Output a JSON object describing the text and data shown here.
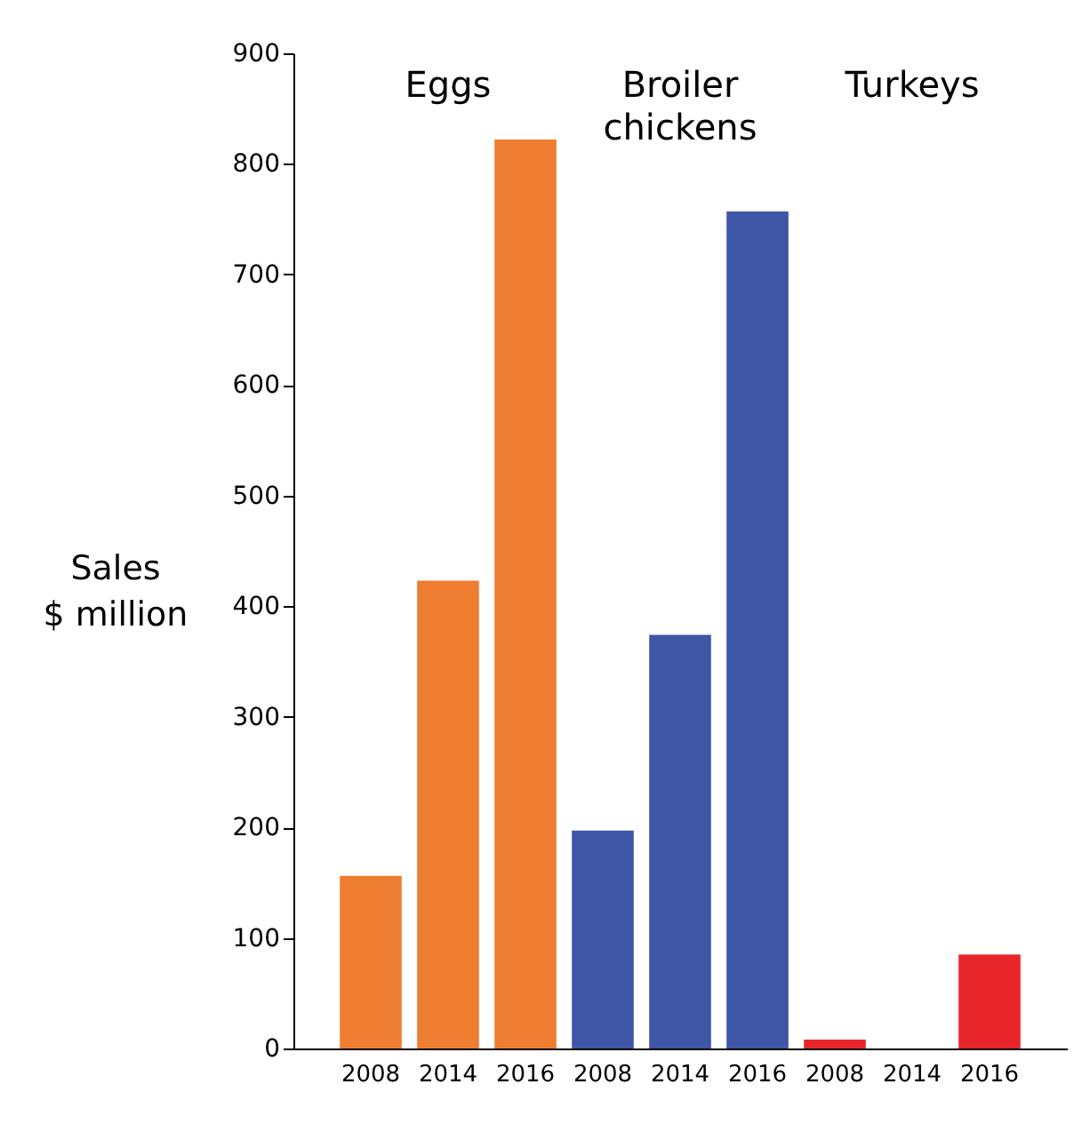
{
  "chart_data": {
    "type": "bar",
    "ylabel": "Sales $ million",
    "categories": [
      "2008",
      "2014",
      "2016",
      "2008",
      "2014",
      "2016",
      "2008",
      "2014",
      "2016"
    ],
    "values": [
      156,
      423,
      822,
      197,
      374,
      757,
      8,
      null,
      85
    ],
    "colors": [
      "#ee7d31",
      "#ee7d31",
      "#ee7d31",
      "#3f56a7",
      "#3f56a7",
      "#3f56a7",
      "#e8262a",
      "#e8262a",
      "#e8262a"
    ],
    "ylim": [
      0,
      900
    ],
    "yticks": [
      0,
      100,
      200,
      300,
      400,
      500,
      600,
      700,
      800,
      900
    ],
    "grid": false,
    "legend": false,
    "annotations": [
      "Eggs",
      "Broiler chickens",
      "Turkeys"
    ]
  }
}
